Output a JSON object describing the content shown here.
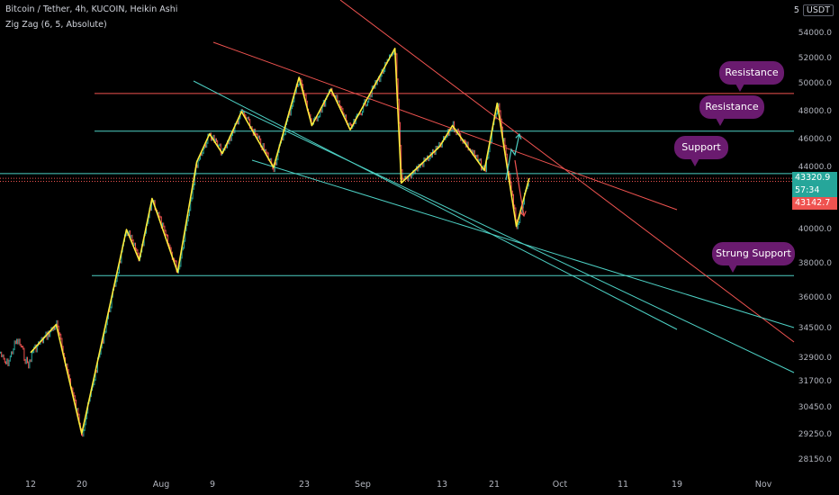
{
  "header": {
    "title": "Bitcoin / Tether, 4h, KUCOIN, Heikin Ashi",
    "indicator": "Zig Zag (6, 5, Absolute)",
    "currency_num": "5",
    "currency": "USDT"
  },
  "price_tags": {
    "last_price": "43320.9",
    "countdown": "57:34",
    "low_price": "43142.7"
  },
  "annotations": [
    "Resistance",
    "Resistance",
    "Support",
    "Strung Support"
  ],
  "colors": {
    "background": "#000000",
    "up_candle": "#26a69a",
    "down_candle": "#ef5350",
    "zigzag": "#ffeb3b",
    "resistance_line": "#ef5350",
    "support_line": "#4dd0c4",
    "bubble": "#6a1b6f"
  },
  "chart_data": {
    "type": "candlestick",
    "symbol": "BTC/USDT",
    "y_ticks": [
      "54000.0",
      "52000.0",
      "50000.0",
      "48000.0",
      "46000.0",
      "44000.0",
      "40000.0",
      "38000.0",
      "36000.0",
      "34500.0",
      "32900.0",
      "31700.0",
      "30450.0",
      "29250.0",
      "28150.0"
    ],
    "x_ticks": [
      "12",
      "20",
      "Aug",
      "9",
      "23",
      "Sep",
      "13",
      "21",
      "Oct",
      "11",
      "19",
      "Nov"
    ],
    "zigzag": [
      {
        "t": "Jul 12",
        "p": 33200
      },
      {
        "t": "Jul 16",
        "p": 34700
      },
      {
        "t": "Jul 20",
        "p": 29300
      },
      {
        "t": "Jul 27",
        "p": 40000
      },
      {
        "t": "Jul 29",
        "p": 38200
      },
      {
        "t": "Jul 31",
        "p": 42000
      },
      {
        "t": "Aug 4",
        "p": 37500
      },
      {
        "t": "Aug 7",
        "p": 44400
      },
      {
        "t": "Aug 9",
        "p": 46400
      },
      {
        "t": "Aug 11",
        "p": 45000
      },
      {
        "t": "Aug 14",
        "p": 48000
      },
      {
        "t": "Aug 19",
        "p": 44000
      },
      {
        "t": "Aug 23",
        "p": 50500
      },
      {
        "t": "Aug 25",
        "p": 47000
      },
      {
        "t": "Aug 28",
        "p": 49600
      },
      {
        "t": "Aug 31",
        "p": 46700
      },
      {
        "t": "Sep 7",
        "p": 52800
      },
      {
        "t": "Sep 8",
        "p": 43000
      },
      {
        "t": "Sep 14",
        "p": 45500
      },
      {
        "t": "Sep 16",
        "p": 47000
      },
      {
        "t": "Sep 21",
        "p": 43800
      },
      {
        "t": "Sep 23",
        "p": 48600
      },
      {
        "t": "Sep 26",
        "p": 40200
      },
      {
        "t": "Sep 28",
        "p": 43300
      }
    ],
    "last_price": 43320.9,
    "horizontal_levels": [
      {
        "price": 49300,
        "color": "red"
      },
      {
        "price": 46600,
        "color": "teal"
      },
      {
        "price": 43600,
        "color": "teal"
      },
      {
        "price": 43100,
        "color": "red",
        "style": "dotted"
      },
      {
        "price": 37300,
        "color": "teal"
      }
    ],
    "grid": false
  }
}
